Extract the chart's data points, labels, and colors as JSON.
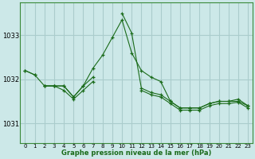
{
  "title": "Graphe pression niveau de la mer (hPa)",
  "background_color": "#cce8e8",
  "grid_color": "#aacccc",
  "line_color": "#1a6b1a",
  "axis_color": "#3a8a3a",
  "x_ticks": [
    0,
    1,
    2,
    3,
    4,
    5,
    6,
    7,
    8,
    9,
    10,
    11,
    12,
    13,
    14,
    15,
    16,
    17,
    18,
    19,
    20,
    21,
    22,
    23
  ],
  "y_ticks": [
    1031,
    1032,
    1033
  ],
  "ylim": [
    1030.55,
    1033.75
  ],
  "xlim": [
    -0.5,
    23.5
  ],
  "series": [
    [
      1032.2,
      1032.1,
      null,
      null,
      null,
      null,
      null,
      null,
      null,
      null,
      null,
      null,
      null,
      null,
      null,
      null,
      null,
      null,
      null,
      null,
      null,
      null,
      null,
      null
    ],
    [
      1032.2,
      1032.1,
      1031.85,
      1031.85,
      1031.85,
      1031.6,
      1031.85,
      1032.25,
      1032.55,
      1032.95,
      1033.35,
      1032.6,
      1032.2,
      1032.05,
      1031.95,
      1031.5,
      1031.35,
      1031.35,
      1031.35,
      1031.45,
      1031.5,
      1031.5,
      1031.55,
      1031.4
    ],
    [
      null,
      null,
      1031.85,
      1031.85,
      1031.85,
      1031.6,
      1031.85,
      1032.05,
      null,
      null,
      1033.5,
      1033.05,
      1031.8,
      1031.7,
      1031.65,
      1031.5,
      1031.35,
      1031.35,
      1031.35,
      1031.45,
      1031.5,
      1031.5,
      1031.5,
      1031.4
    ],
    [
      null,
      null,
      1031.85,
      1031.85,
      1031.75,
      1031.55,
      1031.75,
      1031.95,
      null,
      null,
      null,
      null,
      1031.75,
      1031.65,
      1031.6,
      1031.45,
      1031.3,
      1031.3,
      1031.3,
      1031.4,
      1031.45,
      1031.45,
      1031.48,
      1031.35
    ]
  ]
}
